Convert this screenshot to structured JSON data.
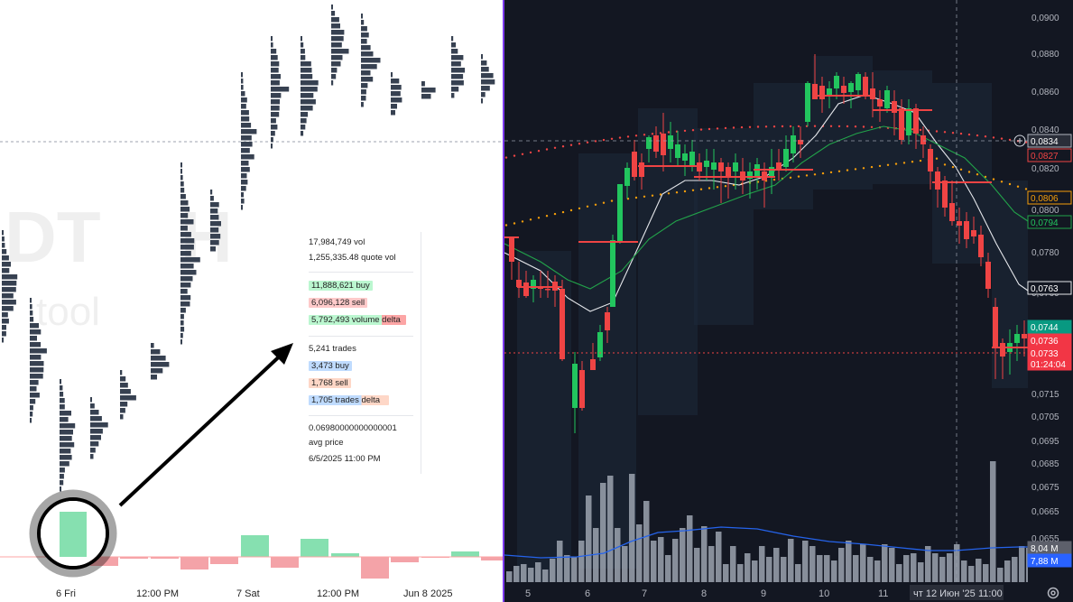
{
  "left_panel": {
    "x_axis_labels": [
      "6 Fri",
      "12:00 PM",
      "7 Sat",
      "12:00 PM",
      "Jun 8 2025"
    ],
    "tooltip": {
      "vol": "17,984,749 vol",
      "quote_vol": "1,255,335.48 quote vol",
      "buy": "11,888,621 buy",
      "sell": "6,096,128 sell",
      "volume_delta": "5,792,493 volume delta",
      "trades": "5,241 trades",
      "trades_buy": "3,473 buy",
      "trades_sell": "1,768 sell",
      "trades_delta": "1,705 trades delta",
      "avg_price_value": "0.06980000000000001",
      "avg_price_label": "avg price",
      "timestamp": "6/5/2025 11:00 PM"
    },
    "colors": {
      "buy": "#86e0b0",
      "sell": "#f4a3a8",
      "blue": "#93c5fd",
      "orange": "#fcd3c1",
      "profile": "#374151"
    }
  },
  "right_panel": {
    "price_axis": [
      "0,0900",
      "0,0880",
      "0,0860",
      "0,0840",
      "0,0820",
      "0,0800",
      "0,0780",
      "0,0760",
      "0,0735",
      "0,0715",
      "0,0705",
      "0,0695",
      "0,0685",
      "0,0675",
      "0,0665",
      "0,0655"
    ],
    "price_badges": [
      {
        "text": "0,0834",
        "style": "crosshair"
      },
      {
        "text": "0,0827",
        "style": "red-outline"
      },
      {
        "text": "0,0806",
        "style": "orange-outline"
      },
      {
        "text": "0,0794",
        "style": "green-outline"
      },
      {
        "text": "0,0763",
        "style": "white-outline"
      },
      {
        "text": "0,0744",
        "style": "green-fill"
      },
      {
        "text": "0,0736",
        "style": "red-fill"
      },
      {
        "text": "0,0733",
        "style": "red-fill"
      },
      {
        "text": "01:24:04",
        "style": "red-fill"
      },
      {
        "text": "8,04 M",
        "style": "gray-fill"
      },
      {
        "text": "7,88 M",
        "style": "blue-fill"
      }
    ],
    "time_axis": [
      "5",
      "6",
      "7",
      "8",
      "9",
      "10",
      "11"
    ],
    "time_crosshair_label": "чт 12 Июн '25",
    "time_crosshair_time": "11:00",
    "settings_icon": "gear-icon",
    "colors": {
      "up": "#22c55e",
      "down": "#ef4444",
      "background": "#131722",
      "volume": "#9ca3af",
      "ma_white": "#e5e7eb",
      "ma_green": "#22a34a",
      "dots_orange": "#f59e0b",
      "dots_red": "#ef4444",
      "volume_ma": "#2563eb"
    }
  }
}
